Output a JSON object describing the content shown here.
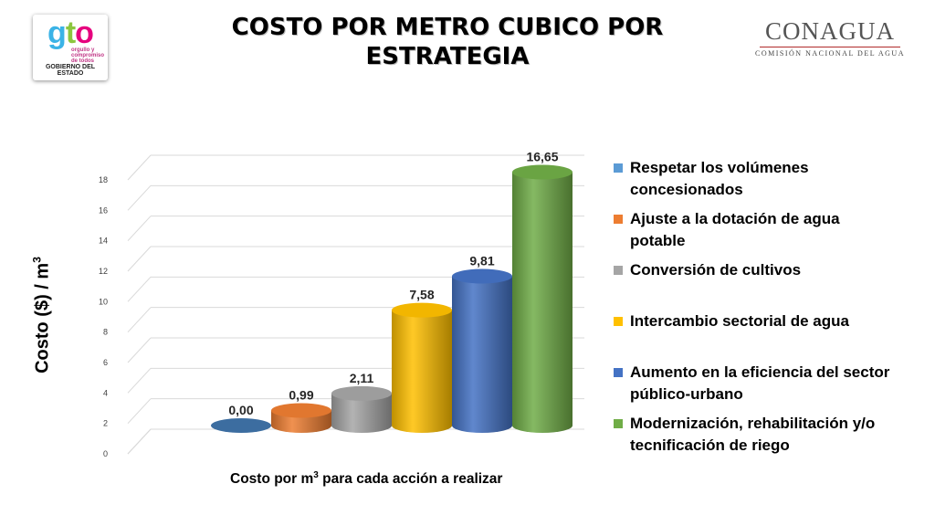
{
  "header": {
    "title_line1": "COSTO POR METRO CUBICO POR",
    "title_line2": "ESTRATEGIA"
  },
  "logo_left": {
    "word_g": "g",
    "word_t": "t",
    "word_o": "o",
    "tagline": "orgullo y compromiso de todos",
    "subtitle": "GOBIERNO DEL ESTADO"
  },
  "logo_right": {
    "name": "CONAGUA",
    "subtitle": "COMISIÓN NACIONAL DEL AGUA"
  },
  "chart_data": {
    "type": "bar",
    "style": "3d-cylinder",
    "ylabel_text": "Costo ($) / m",
    "ylabel_sup": "3",
    "xlabel_pre": "Costo por m",
    "xlabel_sup": "3",
    "xlabel_post": " para cada acción a realizar",
    "ylim": [
      0,
      18
    ],
    "yticks": [
      "0",
      "2",
      "4",
      "6",
      "8",
      "10",
      "12",
      "14",
      "16",
      "18"
    ],
    "grid": true,
    "legend_position": "right",
    "series": [
      {
        "name": "Respetar los volúmenes concesionados",
        "value": 0.0,
        "label": "0,00",
        "color": "#3f73a8"
      },
      {
        "name": "Ajuste a la dotación de agua potable",
        "value": 0.99,
        "label": "0,99",
        "color": "#ed7d31"
      },
      {
        "name": "Conversión de cultivos",
        "value": 2.11,
        "label": "2,11",
        "color": "#a5a5a5"
      },
      {
        "name": "Intercambio sectorial de agua",
        "value": 7.58,
        "label": "7,58",
        "color": "#ffc000"
      },
      {
        "name": "Aumento en la eficiencia del sector público-urbano",
        "value": 9.81,
        "label": "9,81",
        "color": "#4472c4"
      },
      {
        "name": "Modernización, rehabilitación y/o tecnificación de riego",
        "value": 16.65,
        "label": "16,65",
        "color": "#70ad47"
      }
    ]
  },
  "legend": {
    "items": [
      {
        "line1": "Respetar los volúmenes",
        "line2": "concesionados",
        "color": "#5b9bd5"
      },
      {
        "line1": "Ajuste a la dotación de agua",
        "line2": "potable",
        "color": "#ed7d31"
      },
      {
        "line1": "Conversión de cultivos",
        "line2": "",
        "color": "#a5a5a5"
      },
      {
        "line1": "Intercambio sectorial de agua",
        "line2": "",
        "color": "#ffc000"
      },
      {
        "line1": "Aumento en la eficiencia del sector",
        "line2": "público-urbano",
        "color": "#4472c4"
      },
      {
        "line1": "Modernización, rehabilitación y/o",
        "line2": "tecnificación de riego",
        "color": "#70ad47"
      }
    ]
  }
}
